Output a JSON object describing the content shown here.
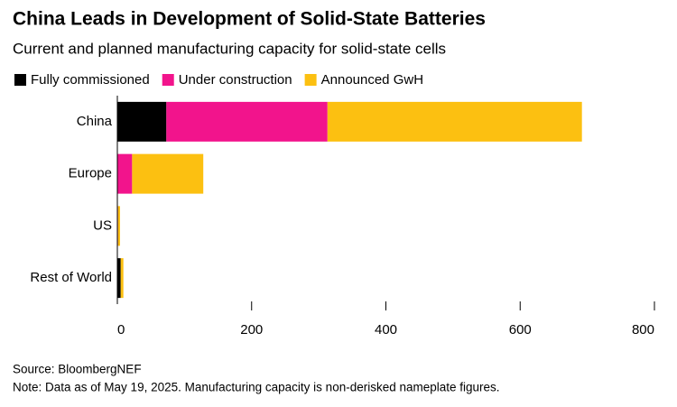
{
  "chart_data": {
    "type": "stacked-barh",
    "title": "China Leads in Development of Solid-State Batteries",
    "subtitle": "Current and planned manufacturing capacity for solid-state cells",
    "categories": [
      "China",
      "Europe",
      "US",
      "Rest of World"
    ],
    "series": [
      {
        "name": "Fully commissioned",
        "color": "#000000",
        "values": [
          73,
          0,
          0,
          5
        ]
      },
      {
        "name": "Under construction",
        "color": "#f2148c",
        "values": [
          240,
          22,
          1,
          0
        ]
      },
      {
        "name": "Announced GwH",
        "color": "#fcc011",
        "values": [
          379,
          106,
          3,
          4
        ]
      }
    ],
    "xlim": [
      0,
      800
    ],
    "xticks": [
      0,
      200,
      400,
      600,
      800
    ],
    "source": "Source: BloombergNEF",
    "note": "Note: Data as of May 19, 2025. Manufacturing capacity is non-derisked nameplate figures."
  }
}
